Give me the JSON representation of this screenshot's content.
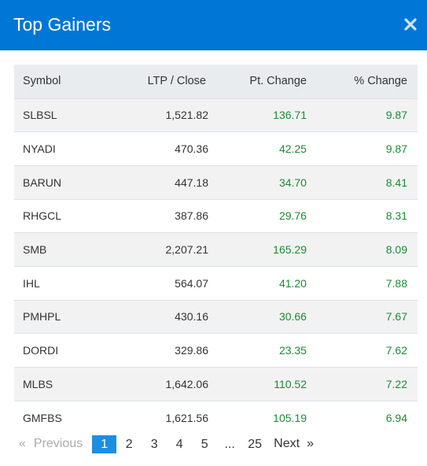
{
  "modal": {
    "title": "Top Gainers",
    "close_icon": "close-icon"
  },
  "table": {
    "headers": {
      "symbol": "Symbol",
      "ltp": "LTP / Close",
      "pt_change": "Pt. Change",
      "pct_change": "% Change"
    },
    "rows": [
      {
        "symbol": "SLBSL",
        "ltp": "1,521.82",
        "pt": "136.71",
        "pct": "9.87"
      },
      {
        "symbol": "NYADI",
        "ltp": "470.36",
        "pt": "42.25",
        "pct": "9.87"
      },
      {
        "symbol": "BARUN",
        "ltp": "447.18",
        "pt": "34.70",
        "pct": "8.41"
      },
      {
        "symbol": "RHGCL",
        "ltp": "387.86",
        "pt": "29.76",
        "pct": "8.31"
      },
      {
        "symbol": "SMB",
        "ltp": "2,207.21",
        "pt": "165.29",
        "pct": "8.09"
      },
      {
        "symbol": "IHL",
        "ltp": "564.07",
        "pt": "41.20",
        "pct": "7.88"
      },
      {
        "symbol": "PMHPL",
        "ltp": "430.16",
        "pt": "30.66",
        "pct": "7.67"
      },
      {
        "symbol": "DORDI",
        "ltp": "329.86",
        "pt": "23.35",
        "pct": "7.62"
      },
      {
        "symbol": "MLBS",
        "ltp": "1,642.06",
        "pt": "110.52",
        "pct": "7.22"
      },
      {
        "symbol": "GMFBS",
        "ltp": "1,621.56",
        "pt": "105.19",
        "pct": "6.94"
      }
    ]
  },
  "pagination": {
    "prev_arrow": "«",
    "prev_label": "Previous",
    "pages": [
      "1",
      "2",
      "3",
      "4",
      "5",
      "...",
      "25"
    ],
    "active_page": "1",
    "next_label": "Next",
    "next_arrow": "»"
  },
  "colors": {
    "header_bg": "#0076d6",
    "positive": "#1a8a36",
    "active_page": "#1e8ee0"
  }
}
